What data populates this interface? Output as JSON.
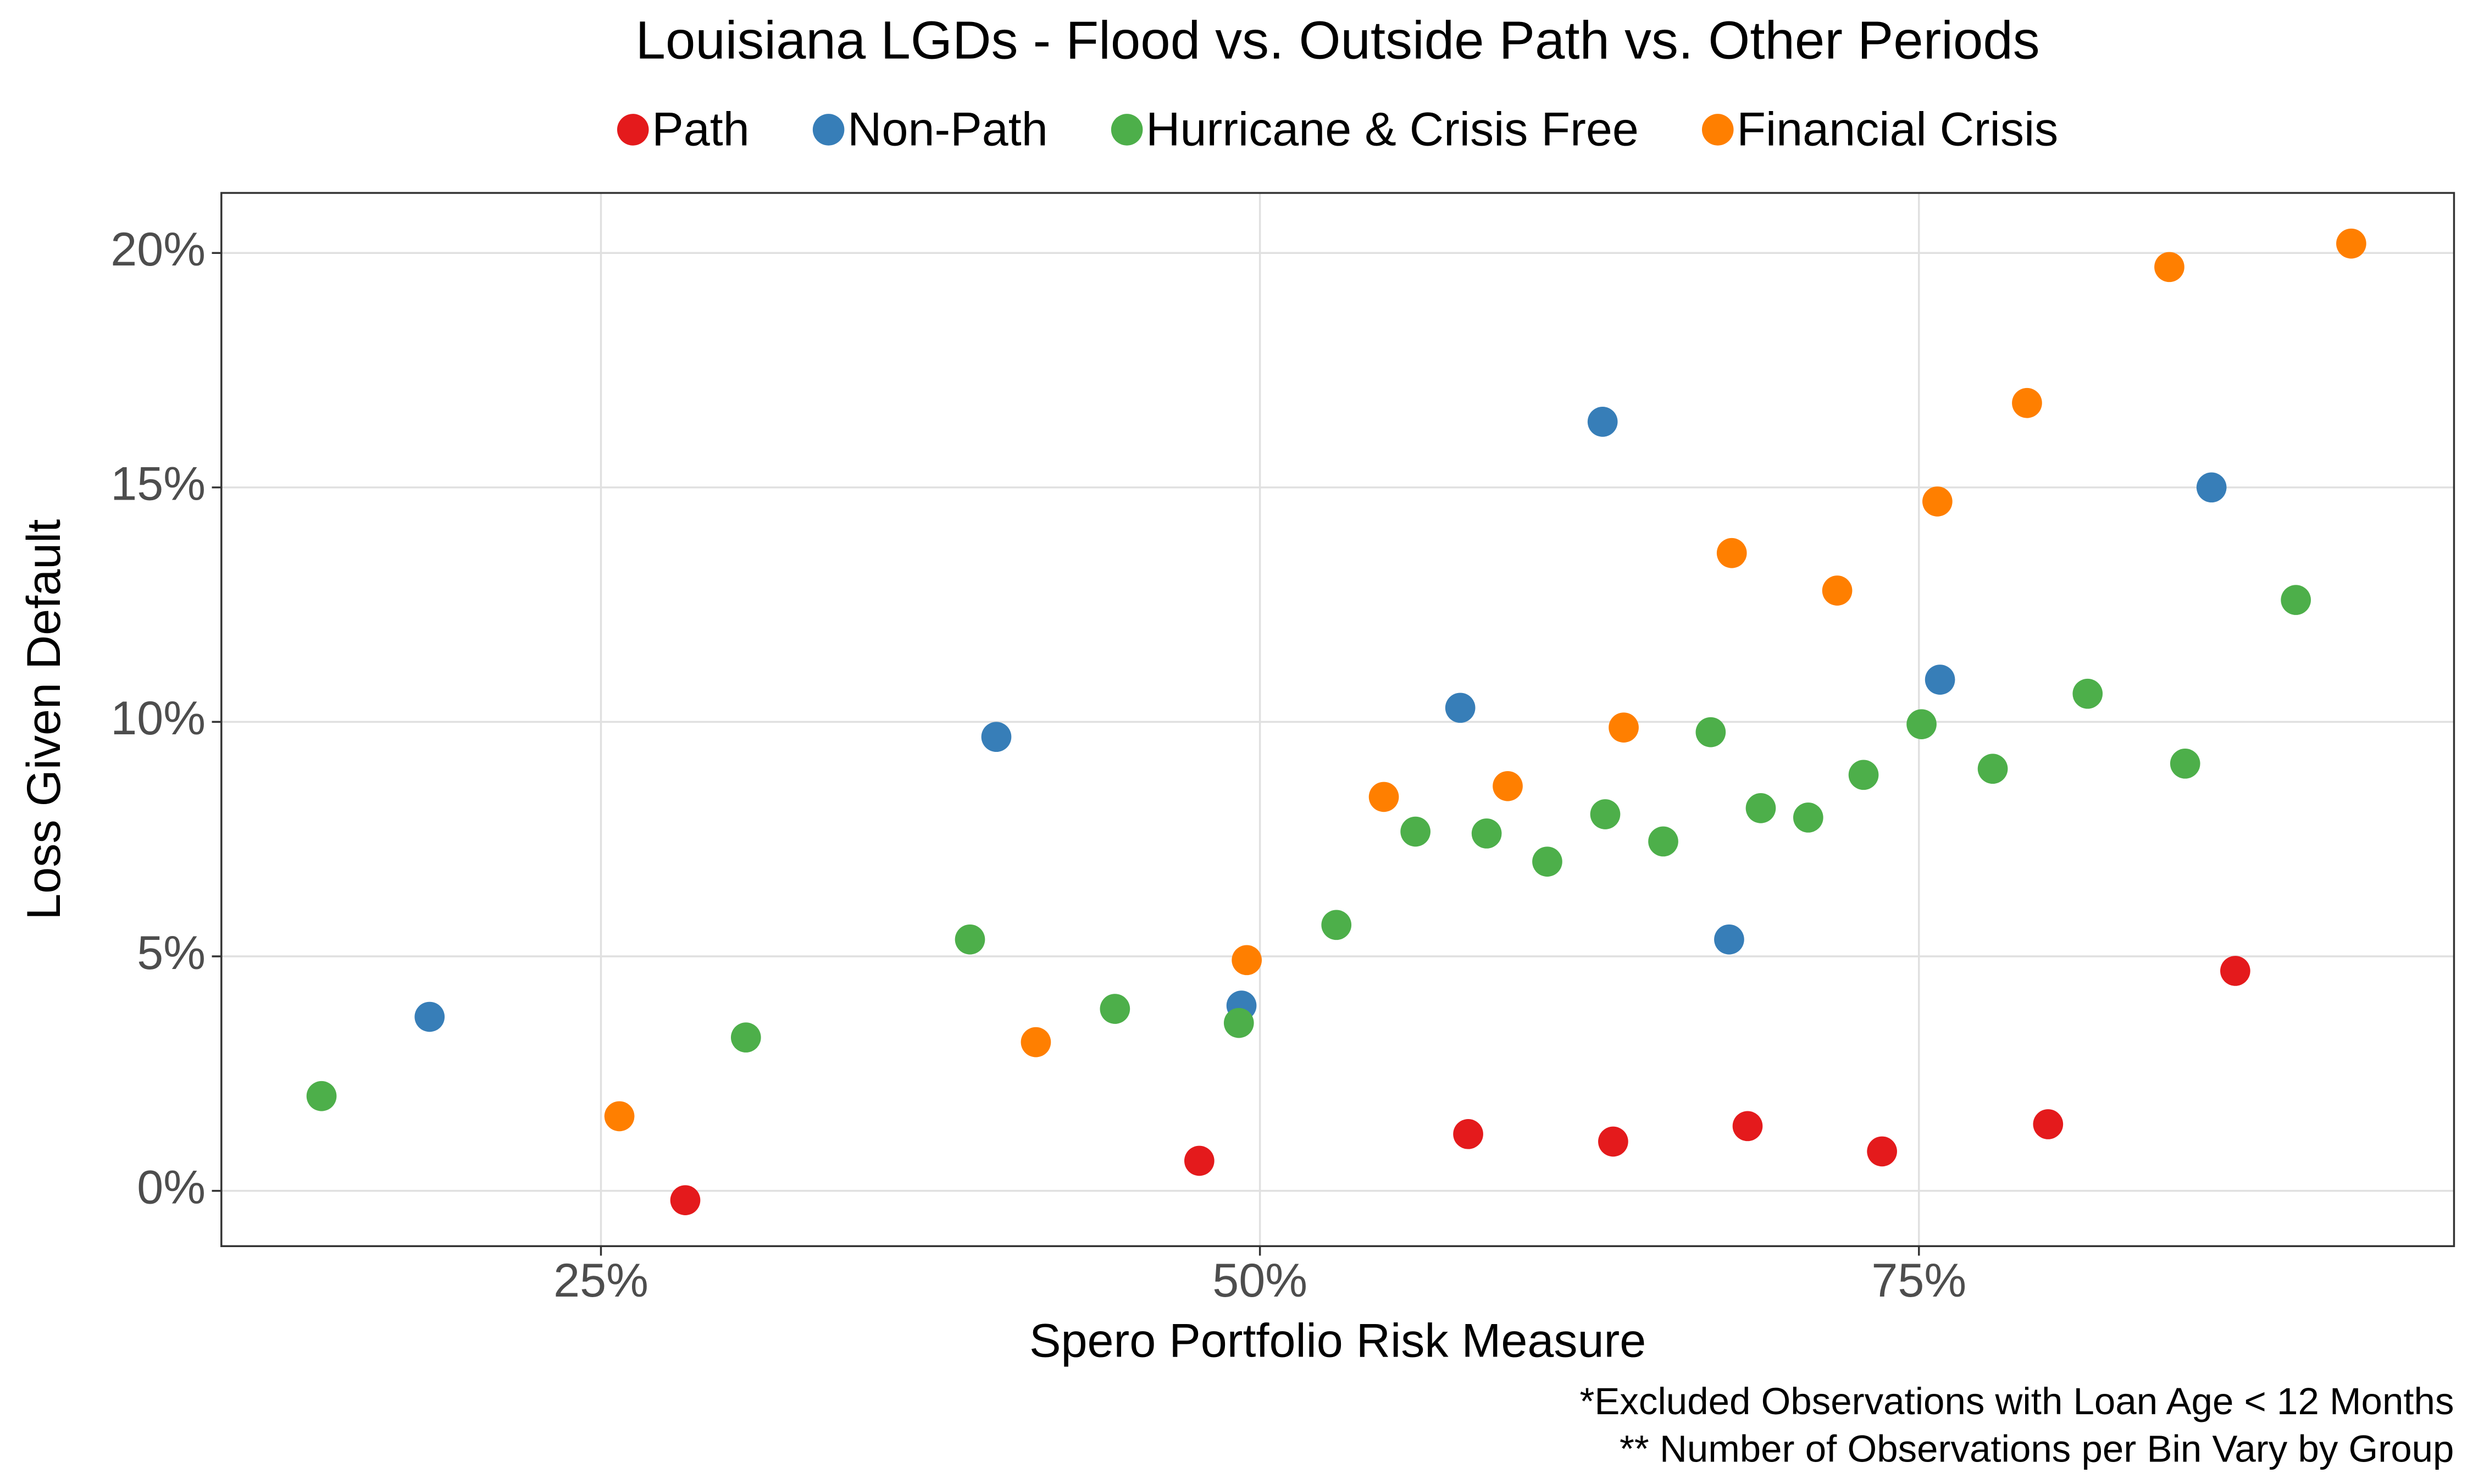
{
  "chart_data": {
    "type": "scatter",
    "title": "Louisiana LGDs - Flood vs. Outside Path vs. Other Periods",
    "x_label": "Spero Portfolio Risk Measure",
    "y_label": "Loss Given Default",
    "notes": [
      "*Excluded Observations with Loan Age < 12 Months",
      "** Number of Observations per Bin Vary by Group"
    ],
    "xlim": [
      10.6,
      95.3
    ],
    "ylim": [
      -1.18,
      21.28
    ],
    "xticks": [
      {
        "value": 25,
        "label": "25%"
      },
      {
        "value": 50,
        "label": "50%"
      },
      {
        "value": 75,
        "label": "75%"
      }
    ],
    "yticks": [
      {
        "value": 0,
        "label": "0%"
      },
      {
        "value": 5,
        "label": "5%"
      },
      {
        "value": 10,
        "label": "10%"
      },
      {
        "value": 15,
        "label": "15%"
      },
      {
        "value": 20,
        "label": "20%"
      }
    ],
    "grid": true,
    "legend": "top",
    "series": [
      {
        "name": "Path",
        "color": "#e41a1c",
        "x": [
          28.2,
          47.7,
          57.9,
          63.4,
          68.5,
          73.6,
          79.9,
          87.0
        ],
        "values": [
          -0.2,
          0.64,
          1.21,
          1.05,
          1.38,
          0.84,
          1.42,
          4.69
        ]
      },
      {
        "name": "Non-Path",
        "color": "#377eb8",
        "x": [
          18.5,
          40.0,
          49.3,
          57.6,
          63.0,
          67.8,
          75.8,
          86.1
        ],
        "values": [
          3.71,
          9.68,
          3.95,
          10.3,
          16.4,
          5.36,
          10.9,
          15.0
        ]
      },
      {
        "name": "Hurricane & Crisis Free",
        "color": "#4daf4a",
        "x": [
          14.4,
          30.5,
          39.0,
          44.5,
          49.2,
          52.9,
          55.9,
          58.6,
          60.9,
          63.1,
          65.3,
          67.1,
          69.0,
          70.8,
          72.9,
          75.1,
          77.8,
          81.4,
          85.1,
          89.3
        ],
        "values": [
          2.02,
          3.27,
          5.36,
          3.88,
          3.58,
          5.67,
          7.66,
          7.62,
          7.02,
          8.03,
          7.45,
          9.78,
          8.16,
          7.96,
          8.87,
          9.95,
          9.0,
          10.6,
          9.11,
          12.6
        ]
      },
      {
        "name": "Financial Crisis",
        "color": "#ff7f00",
        "x": [
          25.7,
          41.5,
          49.5,
          54.7,
          59.4,
          63.8,
          67.9,
          71.9,
          75.7,
          79.1,
          84.5,
          91.4
        ],
        "values": [
          1.59,
          3.17,
          4.92,
          8.4,
          8.63,
          9.88,
          13.6,
          12.8,
          14.7,
          16.8,
          19.7,
          20.2
        ]
      }
    ]
  }
}
